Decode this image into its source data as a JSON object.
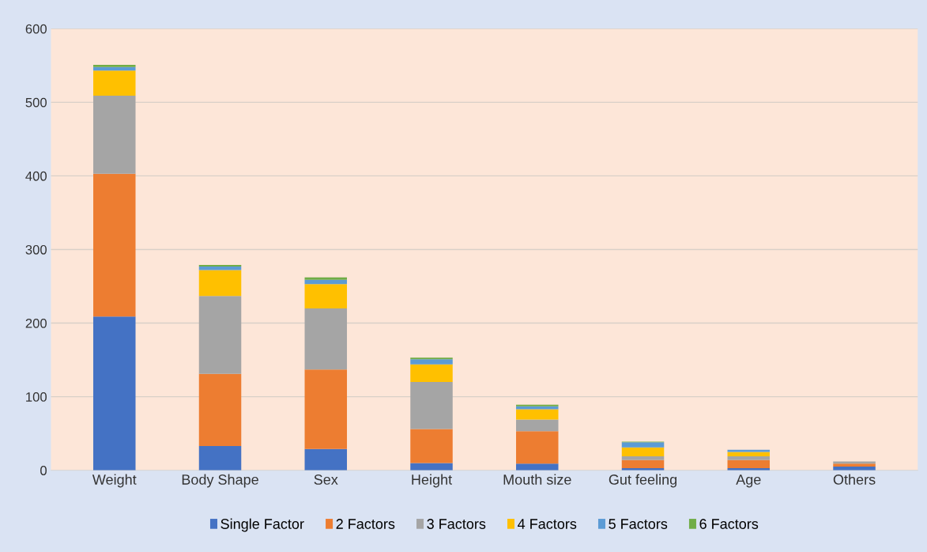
{
  "chart_data": {
    "type": "bar",
    "stacked": true,
    "categories": [
      "Weight",
      "Body Shape",
      "Sex",
      "Height",
      "Mouth size",
      "Gut feeling",
      "Age",
      "Others"
    ],
    "series": [
      {
        "name": "Single Factor",
        "color": "#4472c4",
        "values": [
          209,
          33,
          29,
          10,
          9,
          3,
          3,
          5
        ]
      },
      {
        "name": "2 Factors",
        "color": "#ed7d31",
        "values": [
          194,
          98,
          108,
          46,
          44,
          11,
          11,
          4
        ]
      },
      {
        "name": "3 Factors",
        "color": "#a5a5a5",
        "values": [
          106,
          106,
          83,
          64,
          16,
          5,
          5,
          3
        ]
      },
      {
        "name": "4 Factors",
        "color": "#ffc000",
        "values": [
          34,
          35,
          33,
          24,
          14,
          12,
          6,
          0
        ]
      },
      {
        "name": "5 Factors",
        "color": "#5b9bd5",
        "values": [
          5,
          5,
          6,
          7,
          4,
          7,
          3,
          0
        ]
      },
      {
        "name": "6 Factors",
        "color": "#70ad47",
        "values": [
          3,
          2,
          3,
          2,
          2,
          1,
          0,
          0
        ]
      }
    ],
    "ylim": [
      0,
      600
    ],
    "yticks": [
      0,
      100,
      200,
      300,
      400,
      500,
      600
    ],
    "grid": "y",
    "legend": "bottom"
  }
}
